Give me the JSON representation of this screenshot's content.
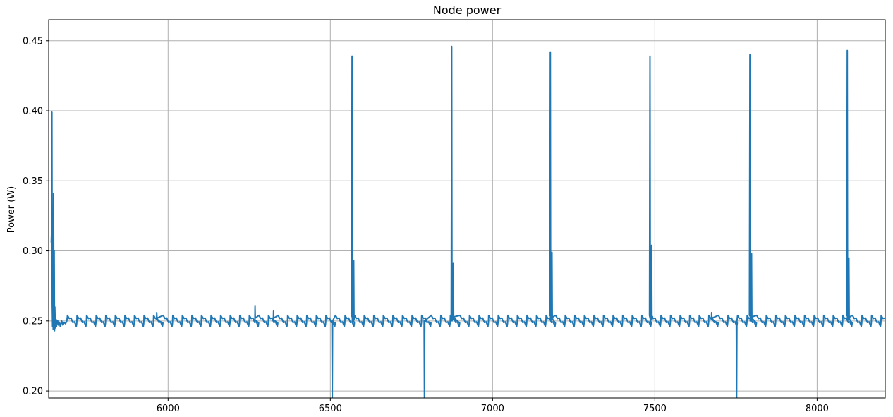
{
  "chart_data": {
    "type": "line",
    "title": "Node power",
    "xlabel": "",
    "ylabel": "Power (W)",
    "xlim": [
      5632,
      8210
    ],
    "ylim": [
      0.195,
      0.465
    ],
    "xticks": [
      6000,
      6500,
      7000,
      7500,
      8000
    ],
    "xtick_labels": [
      "6000",
      "6500",
      "7000",
      "7500",
      "8000"
    ],
    "yticks": [
      0.2,
      0.25,
      0.3,
      0.35,
      0.4,
      0.45
    ],
    "ytick_labels": [
      "0.20",
      "0.25",
      "0.30",
      "0.35",
      "0.40",
      "0.45"
    ],
    "grid": true,
    "color": "#1f77b4",
    "baseline": {
      "x_start": 5690,
      "x_end": 8210,
      "period": 29.5,
      "high": 0.254,
      "low": 0.247
    },
    "start_burst": {
      "x": [
        5640,
        5641,
        5642,
        5643,
        5644,
        5645,
        5646,
        5647,
        5648,
        5649,
        5650,
        5651,
        5652,
        5653,
        5654,
        5655,
        5656,
        5657,
        5658,
        5660,
        5662,
        5665,
        5668,
        5672,
        5676,
        5680,
        5684,
        5688
      ],
      "y": [
        0.306,
        0.314,
        0.399,
        0.262,
        0.246,
        0.296,
        0.244,
        0.341,
        0.248,
        0.3,
        0.243,
        0.26,
        0.25,
        0.245,
        0.249,
        0.251,
        0.246,
        0.25,
        0.248,
        0.25,
        0.247,
        0.249,
        0.246,
        0.25,
        0.247,
        0.249,
        0.248,
        0.25
      ]
    },
    "spikes": [
      {
        "x": 6567,
        "peak": 0.439,
        "secondary": 0.293
      },
      {
        "x": 6874,
        "peak": 0.446,
        "secondary": 0.291
      },
      {
        "x": 7178,
        "peak": 0.442,
        "secondary": 0.299
      },
      {
        "x": 7485,
        "peak": 0.439,
        "secondary": 0.304
      },
      {
        "x": 7793,
        "peak": 0.44,
        "secondary": 0.298
      },
      {
        "x": 8093,
        "peak": 0.443,
        "secondary": 0.295
      }
    ],
    "dips": [
      {
        "x": 6506,
        "min": 0.195
      },
      {
        "x": 6790,
        "min": 0.195
      },
      {
        "x": 7752,
        "min": 0.195
      }
    ],
    "bumps": [
      {
        "x": 5965,
        "y": 0.256
      },
      {
        "x": 6268,
        "y": 0.261
      },
      {
        "x": 6325,
        "y": 0.257
      },
      {
        "x": 7675,
        "y": 0.256
      }
    ]
  }
}
